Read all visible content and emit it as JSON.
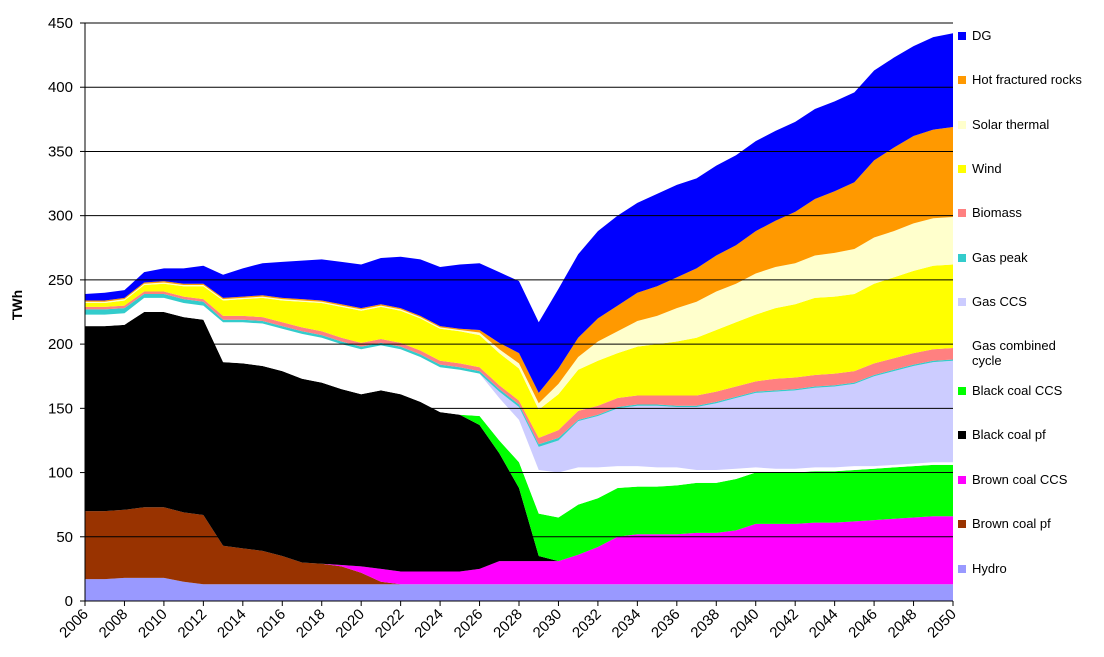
{
  "chart_data": {
    "type": "stacked_area",
    "y_label": "TWh",
    "x": [
      2006,
      2007,
      2008,
      2009,
      2010,
      2011,
      2012,
      2013,
      2014,
      2015,
      2016,
      2017,
      2018,
      2019,
      2020,
      2021,
      2022,
      2023,
      2024,
      2025,
      2026,
      2027,
      2028,
      2029,
      2030,
      2031,
      2032,
      2033,
      2034,
      2035,
      2036,
      2037,
      2038,
      2039,
      2040,
      2041,
      2042,
      2043,
      2044,
      2045,
      2046,
      2047,
      2048,
      2049,
      2050
    ],
    "xlim": [
      2006,
      2050
    ],
    "xticks": [
      2006,
      2008,
      2010,
      2012,
      2014,
      2016,
      2018,
      2020,
      2022,
      2024,
      2026,
      2028,
      2030,
      2032,
      2034,
      2036,
      2038,
      2040,
      2042,
      2044,
      2046,
      2048,
      2050
    ],
    "ylim": [
      0,
      450
    ],
    "yticks": [
      0,
      50,
      100,
      150,
      200,
      250,
      300,
      350,
      400,
      450
    ],
    "grid": true,
    "series": [
      {
        "name": "Hydro",
        "color": "#9999ff",
        "values": [
          17,
          17,
          18,
          18,
          18,
          15,
          13,
          13,
          13,
          13,
          13,
          13,
          13,
          13,
          13,
          13,
          13,
          13,
          13,
          13,
          13,
          13,
          13,
          13,
          13,
          13,
          13,
          13,
          13,
          13,
          13,
          13,
          13,
          13,
          13,
          13,
          13,
          13,
          13,
          13,
          13,
          13,
          13,
          13,
          13
        ]
      },
      {
        "name": "Brown coal pf",
        "color": "#993300",
        "values": [
          53,
          53,
          53,
          55,
          55,
          54,
          54,
          30,
          28,
          26,
          22,
          17,
          16,
          14,
          9,
          2,
          0,
          0,
          0,
          0,
          0,
          0,
          0,
          0,
          0,
          0,
          0,
          0,
          0,
          0,
          0,
          0,
          0,
          0,
          0,
          0,
          0,
          0,
          0,
          0,
          0,
          0,
          0,
          0,
          0
        ]
      },
      {
        "name": "Brown coal CCS",
        "color": "#ff00ff",
        "values": [
          0,
          0,
          0,
          0,
          0,
          0,
          0,
          0,
          0,
          0,
          0,
          0,
          0,
          1,
          5,
          10,
          10,
          10,
          10,
          10,
          12,
          18,
          18,
          18,
          18,
          23,
          29,
          37,
          39,
          39,
          39,
          40,
          40,
          42,
          47,
          47,
          47,
          48,
          48,
          49,
          50,
          51,
          52,
          53,
          53
        ]
      },
      {
        "name": "Black coal pf",
        "color": "#000000",
        "values": [
          144,
          144,
          144,
          152,
          152,
          152,
          152,
          143,
          144,
          144,
          144,
          143,
          141,
          137,
          134,
          139,
          138,
          132,
          124,
          122,
          112,
          84,
          57,
          4,
          0,
          0,
          0,
          0,
          0,
          0,
          0,
          0,
          0,
          0,
          0,
          0,
          0,
          0,
          0,
          0,
          0,
          0,
          0,
          0,
          0
        ]
      },
      {
        "name": "Black coal CCS",
        "color": "#00ff00",
        "values": [
          0,
          0,
          0,
          0,
          0,
          0,
          0,
          0,
          0,
          0,
          0,
          0,
          0,
          0,
          0,
          0,
          0,
          0,
          0,
          0,
          7,
          10,
          20,
          33,
          34,
          39,
          38,
          38,
          37,
          37,
          38,
          39,
          39,
          40,
          40,
          40,
          40,
          40,
          40,
          40,
          40,
          40,
          40,
          40,
          40
        ]
      },
      {
        "name": "Gas combined cycle",
        "color": "#ffffff",
        "values": [
          9,
          9,
          9,
          11,
          11,
          11,
          11,
          31,
          32,
          33,
          33,
          35,
          35,
          35,
          35,
          35,
          35,
          35,
          35,
          35,
          33,
          33,
          33,
          34,
          35,
          29,
          24,
          17,
          16,
          15,
          14,
          10,
          10,
          8,
          4,
          3,
          3,
          3,
          3,
          3,
          2,
          2,
          2,
          2,
          2
        ]
      },
      {
        "name": "Gas CCS",
        "color": "#ccccff",
        "values": [
          0,
          0,
          0,
          0,
          0,
          0,
          0,
          0,
          0,
          0,
          0,
          0,
          0,
          0,
          0,
          0,
          0,
          0,
          0,
          0,
          0,
          5,
          10,
          18,
          25,
          36,
          40,
          45,
          47,
          48,
          47,
          49,
          52,
          55,
          58,
          60,
          61,
          62,
          63,
          64,
          70,
          73,
          76,
          78,
          79
        ]
      },
      {
        "name": "Gas peak",
        "color": "#33cccc",
        "values": [
          4,
          4,
          4,
          3,
          3,
          3,
          3,
          2,
          2,
          2,
          2,
          2,
          2,
          2,
          2,
          2,
          2,
          2,
          2,
          2,
          2,
          2,
          2,
          2,
          2,
          1,
          1,
          1,
          1,
          1,
          1,
          1,
          1,
          1,
          1,
          1,
          1,
          1,
          1,
          1,
          1,
          1,
          1,
          1,
          1
        ]
      },
      {
        "name": "Biomass",
        "color": "#ff8080",
        "values": [
          2,
          2,
          2,
          2,
          2,
          2,
          2,
          3,
          3,
          3,
          3,
          3,
          3,
          3,
          3,
          3,
          3,
          3,
          3,
          3,
          3,
          3,
          3,
          5,
          6,
          7,
          7,
          7,
          7,
          7,
          8,
          8,
          8,
          8,
          8,
          9,
          9,
          9,
          9,
          9,
          9,
          9,
          9,
          9,
          9
        ]
      },
      {
        "name": "Wind",
        "color": "#ffff00",
        "values": [
          3,
          3,
          4,
          5,
          6,
          8,
          10,
          12,
          13,
          15,
          17,
          20,
          22,
          24,
          25,
          25,
          25,
          25,
          25,
          25,
          25,
          25,
          25,
          22,
          28,
          32,
          35,
          35,
          38,
          40,
          42,
          45,
          48,
          50,
          52,
          55,
          57,
          60,
          60,
          60,
          62,
          63,
          64,
          65,
          65
        ]
      },
      {
        "name": "Solar thermal",
        "color": "#ffffcc",
        "values": [
          1,
          1,
          1,
          1,
          1,
          1,
          1,
          1,
          1,
          1,
          1,
          1,
          1,
          1,
          1,
          1,
          1,
          1,
          1,
          1,
          2,
          3,
          4,
          5,
          8,
          10,
          15,
          17,
          20,
          22,
          26,
          28,
          30,
          30,
          32,
          32,
          32,
          33,
          34,
          35,
          36,
          36,
          37,
          37,
          37
        ]
      },
      {
        "name": "Hot fractured rocks",
        "color": "#ff9900",
        "values": [
          1,
          1,
          1,
          1,
          1,
          1,
          1,
          1,
          1,
          1,
          1,
          1,
          1,
          1,
          1,
          1,
          1,
          1,
          1,
          1,
          2,
          5,
          8,
          8,
          12,
          15,
          18,
          20,
          22,
          23,
          24,
          26,
          28,
          30,
          33,
          36,
          40,
          44,
          48,
          52,
          60,
          65,
          68,
          69,
          70
        ]
      },
      {
        "name": "DG",
        "color": "#0000ff",
        "values": [
          5,
          6,
          6,
          8,
          10,
          12,
          14,
          18,
          22,
          25,
          28,
          30,
          32,
          33,
          34,
          36,
          40,
          44,
          46,
          50,
          52,
          55,
          56,
          55,
          62,
          65,
          68,
          70,
          70,
          72,
          72,
          70,
          70,
          70,
          70,
          70,
          70,
          70,
          70,
          70,
          70,
          70,
          70,
          72,
          73
        ]
      }
    ]
  }
}
